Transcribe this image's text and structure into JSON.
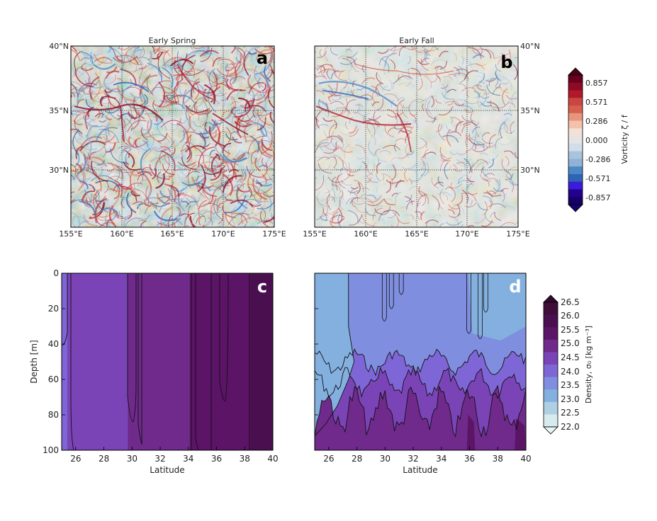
{
  "figure": {
    "panels": [
      {
        "letter": "a",
        "title": "Early Spring",
        "type": "heatmap",
        "lon_ticks": [
          "155°E",
          "160°E",
          "165°E",
          "170°E",
          "175°E"
        ],
        "lat_ticks": [
          "40°N",
          "35°N",
          "30°N"
        ]
      },
      {
        "letter": "b",
        "title": "Early Fall",
        "type": "heatmap",
        "lon_ticks": [
          "155°E",
          "160°E",
          "165°E",
          "170°E",
          "175°E"
        ],
        "lat_ticks": [
          "40°N",
          "35°N",
          "30°N"
        ]
      }
    ],
    "vorticity_colorbar": {
      "label": "Vorticity ζ / f",
      "ticks": [
        "0.857",
        "0.571",
        "0.286",
        "0.000",
        "-0.286",
        "-0.571",
        "-0.857"
      ],
      "colors": [
        "#67001f",
        "#8e0b23",
        "#b2182b",
        "#c94741",
        "#d6604d",
        "#e7957c",
        "#f4c2ac",
        "#f3e0d7",
        "#e4e4e4",
        "#d1dde8",
        "#a8c3dc",
        "#8fb2d6",
        "#4c87c6",
        "#2f64b5",
        "#3a1cd9",
        "#23008e",
        "#140066"
      ]
    },
    "density_colorbar": {
      "label": "Density, σ₀ [kg m⁻³]",
      "ticks": [
        "26.5",
        "26.0",
        "25.5",
        "25.0",
        "24.5",
        "24.0",
        "23.5",
        "23.0",
        "22.5",
        "22.0"
      ],
      "colors": [
        "#3f0f3a",
        "#4a0f4f",
        "#5b1466",
        "#6f2a8b",
        "#7a44b7",
        "#7f66d6",
        "#7f8ede",
        "#84b0e0",
        "#aed0e2",
        "#d7ebee"
      ]
    }
  },
  "chart_data": [
    {
      "type": "heatmap",
      "panel": "a",
      "title": "Early Spring",
      "x_axis": {
        "range": [
          155,
          175
        ],
        "ticks": [
          155,
          160,
          165,
          170,
          175
        ],
        "unit": "°E"
      },
      "y_axis": {
        "range": [
          25.5,
          40
        ],
        "ticks": [
          30,
          35,
          40
        ],
        "unit": "°N"
      },
      "grid": true,
      "variable": "Vorticity ζ / f",
      "color_range": [
        -0.857,
        0.857
      ]
    },
    {
      "type": "heatmap",
      "panel": "b",
      "title": "Early Fall",
      "x_axis": {
        "range": [
          155,
          175
        ],
        "ticks": [
          155,
          160,
          165,
          170,
          175
        ],
        "unit": "°E"
      },
      "y_axis": {
        "range": [
          25.5,
          40
        ],
        "ticks": [
          30,
          35,
          40
        ],
        "unit": "°N"
      },
      "grid": true,
      "variable": "Vorticity ζ / f",
      "color_range": [
        -0.857,
        0.857
      ]
    },
    {
      "type": "heatmap",
      "panel": "c",
      "xlabel": "Latitude",
      "ylabel": "Depth [m]",
      "xlim": [
        25,
        40
      ],
      "ylim": [
        0,
        100
      ],
      "x_ticks": [
        26,
        28,
        30,
        32,
        34,
        36,
        38,
        40
      ],
      "y_ticks": [
        0,
        20,
        40,
        60,
        80,
        100
      ],
      "color_levels": [
        22.0,
        22.5,
        23.0,
        23.5,
        24.0,
        24.5,
        25.0,
        25.5,
        26.0,
        26.5
      ],
      "bands": [
        {
          "from": 25.0,
          "to": 25.4,
          "density": 24.0
        },
        {
          "from": 25.4,
          "to": 29.7,
          "density": 24.5
        },
        {
          "from": 29.7,
          "to": 34.1,
          "density": 25.0
        },
        {
          "from": 34.1,
          "to": 35.6,
          "density": 25.5
        },
        {
          "from": 35.6,
          "to": 38.4,
          "density": 25.5
        },
        {
          "from": 38.4,
          "to": 40.0,
          "density": 26.0
        }
      ]
    },
    {
      "type": "heatmap",
      "panel": "d",
      "xlabel": "Latitude",
      "xlim": [
        25,
        40
      ],
      "ylim": [
        0,
        100
      ],
      "x_ticks": [
        26,
        28,
        30,
        32,
        34,
        36,
        38,
        40
      ],
      "y_ticks": [
        0,
        20,
        40,
        60,
        80,
        100
      ],
      "color_levels": [
        22.0,
        22.5,
        23.0,
        23.5,
        24.0,
        24.5,
        25.0,
        25.5,
        26.0,
        26.5
      ],
      "layers": [
        {
          "density": 23.0,
          "top_depth": 0
        },
        {
          "density": 23.5,
          "top_depth": 0
        },
        {
          "density": 24.0,
          "top_depth": 50
        },
        {
          "density": 24.5,
          "top_depth": 60
        },
        {
          "density": 25.0,
          "top_depth": 72
        },
        {
          "density": 25.5,
          "top_depth": 90
        }
      ]
    }
  ],
  "axes_c": {
    "ylabel": "Depth [m]",
    "xlabel": "Latitude"
  },
  "axes_d": {
    "xlabel": "Latitude"
  },
  "letters": {
    "c": "c",
    "d": "d"
  }
}
